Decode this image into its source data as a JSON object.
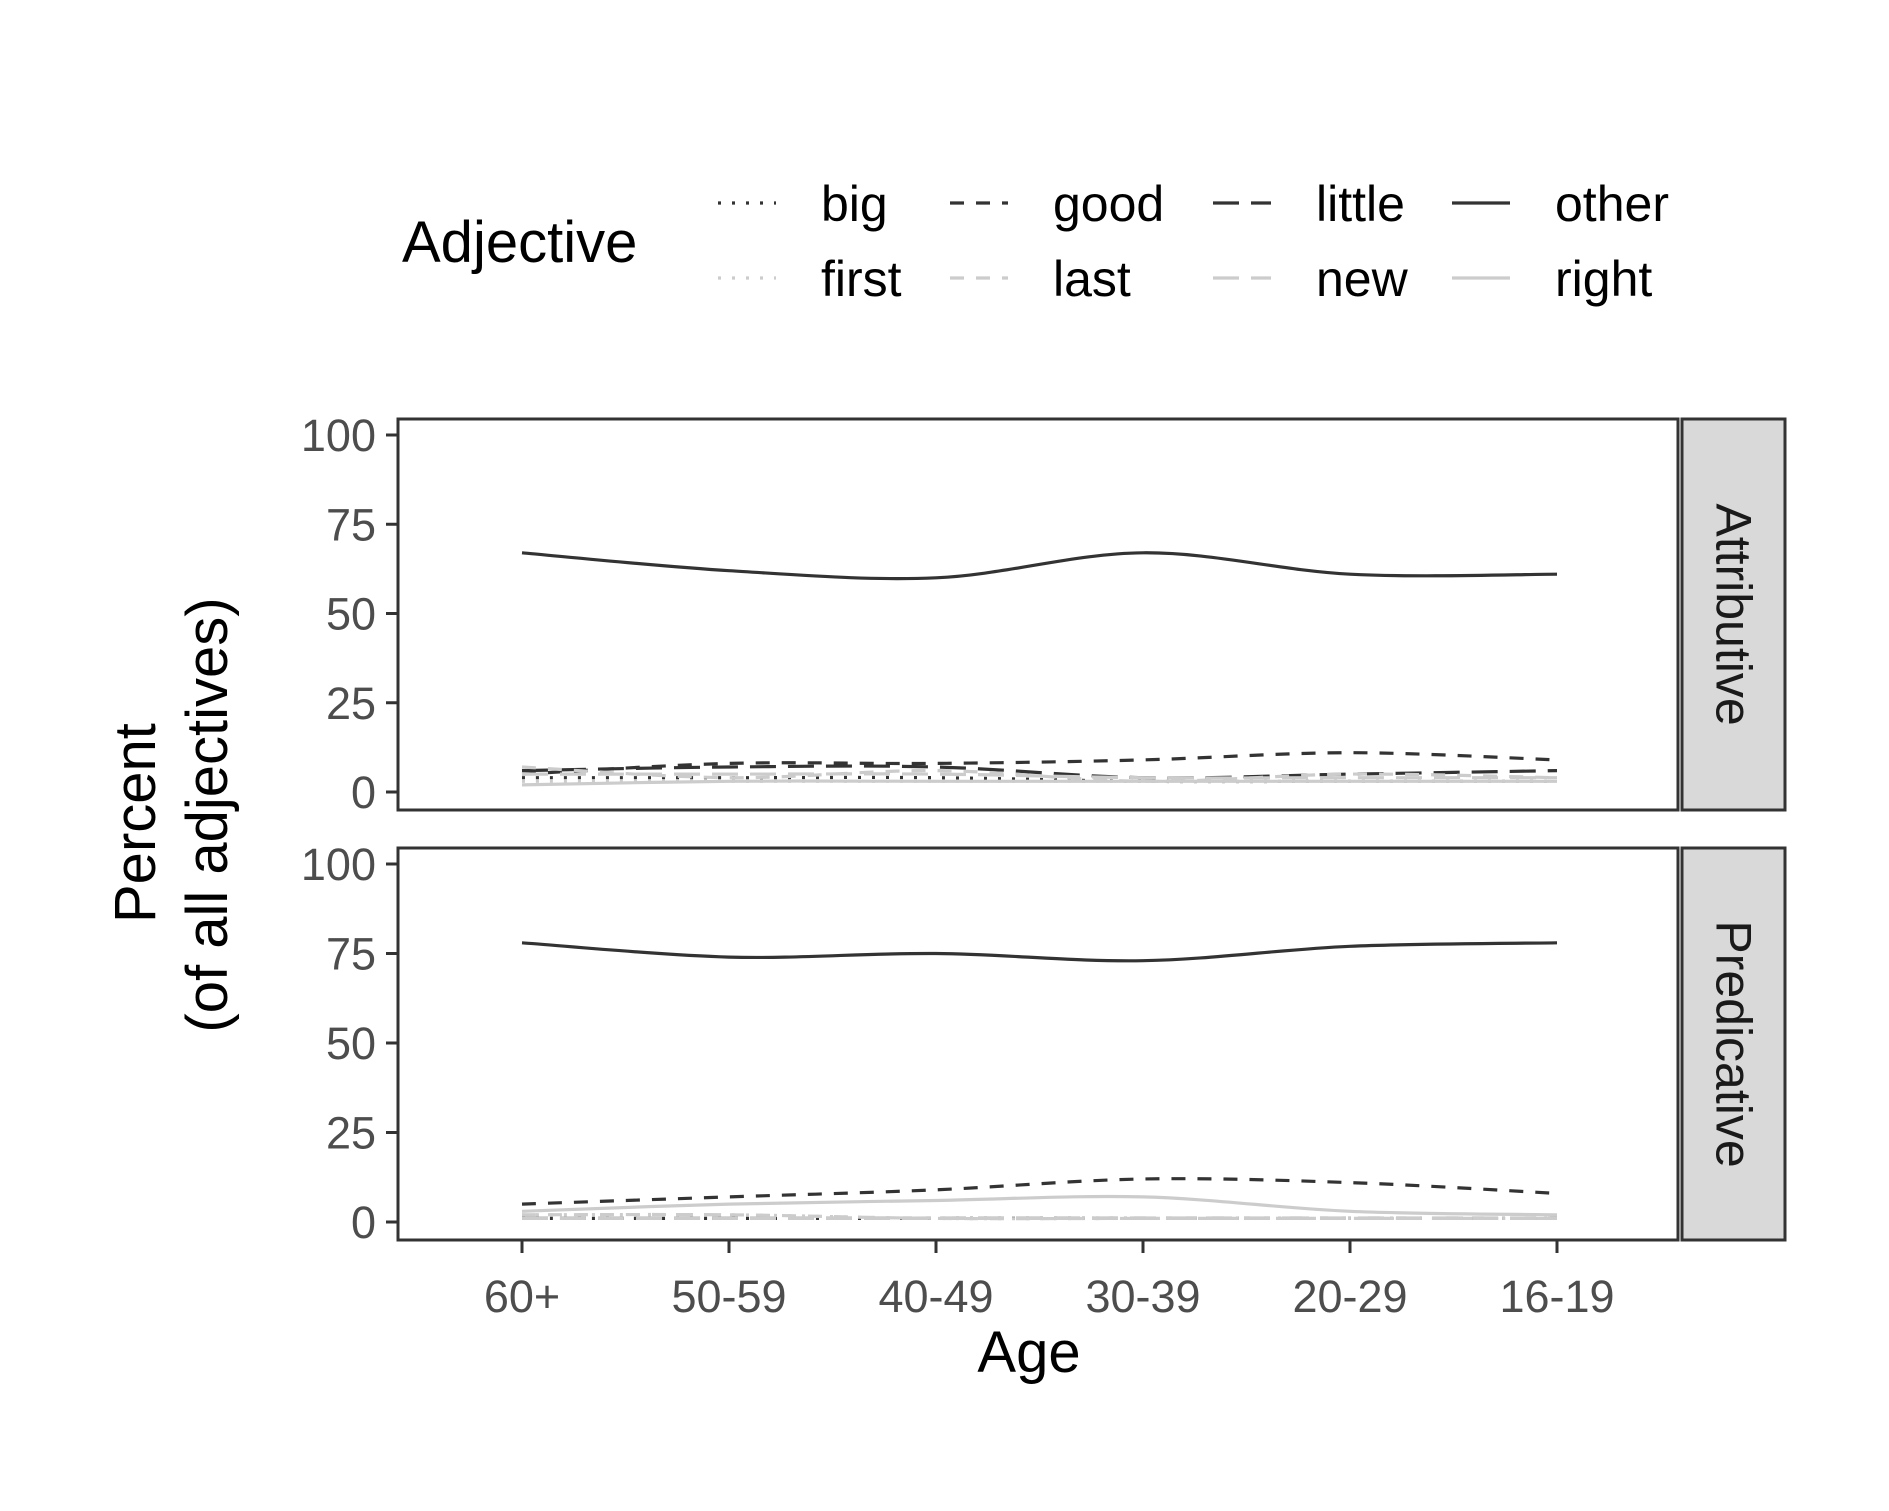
{
  "chart_data": {
    "type": "line",
    "x": [
      "60+",
      "50-59",
      "40-49",
      "30-39",
      "20-29",
      "16-19"
    ],
    "xlabel": "Age",
    "ylabel": [
      "Percent",
      "(of all adjectives)"
    ],
    "ylim": [
      0,
      100
    ],
    "yticks": [
      0,
      25,
      50,
      75,
      100
    ],
    "grid": false,
    "legend": {
      "title": "Adjective",
      "position": "top",
      "entries": [
        {
          "name": "big",
          "color": "#333333",
          "linetype": "dotted"
        },
        {
          "name": "good",
          "color": "#333333",
          "linetype": "dashed"
        },
        {
          "name": "little",
          "color": "#333333",
          "linetype": "longdash"
        },
        {
          "name": "other",
          "color": "#333333",
          "linetype": "solid"
        },
        {
          "name": "first",
          "color": "#cccccc",
          "linetype": "dotted"
        },
        {
          "name": "last",
          "color": "#cccccc",
          "linetype": "dashed"
        },
        {
          "name": "new",
          "color": "#cccccc",
          "linetype": "longdash"
        },
        {
          "name": "right",
          "color": "#cccccc",
          "linetype": "solid"
        }
      ]
    },
    "panels": [
      {
        "strip": "Attributive",
        "series": [
          {
            "name": "big",
            "values": [
              4,
              4,
              4,
              3,
              3,
              3
            ]
          },
          {
            "name": "good",
            "values": [
              5,
              8,
              8,
              9,
              11,
              9
            ]
          },
          {
            "name": "little",
            "values": [
              6,
              7,
              7,
              4,
              5,
              6
            ]
          },
          {
            "name": "other",
            "values": [
              67,
              62,
              60,
              67,
              61,
              61
            ]
          },
          {
            "name": "first",
            "values": [
              3,
              3,
              3,
              3,
              3,
              3
            ]
          },
          {
            "name": "last",
            "values": [
              7,
              4,
              6,
              3,
              5,
              4
            ]
          },
          {
            "name": "new",
            "values": [
              5,
              5,
              5,
              4,
              4,
              4
            ]
          },
          {
            "name": "right",
            "values": [
              2,
              3,
              3,
              3,
              3,
              3
            ]
          }
        ]
      },
      {
        "strip": "Predicative",
        "series": [
          {
            "name": "big",
            "values": [
              1,
              1,
              1,
              1,
              1,
              1
            ]
          },
          {
            "name": "good",
            "values": [
              5,
              7,
              9,
              12,
              11,
              8
            ]
          },
          {
            "name": "little",
            "values": [
              1,
              1,
              1,
              1,
              1,
              1
            ]
          },
          {
            "name": "other",
            "values": [
              78,
              74,
              75,
              73,
              77,
              78
            ]
          },
          {
            "name": "first",
            "values": [
              2,
              2,
              1,
              1,
              1,
              1
            ]
          },
          {
            "name": "last",
            "values": [
              2,
              2,
              1,
              1,
              1,
              1
            ]
          },
          {
            "name": "new",
            "values": [
              1,
              1,
              1,
              1,
              1,
              1
            ]
          },
          {
            "name": "right",
            "values": [
              3,
              5,
              6,
              7,
              3,
              2
            ]
          }
        ]
      }
    ]
  }
}
